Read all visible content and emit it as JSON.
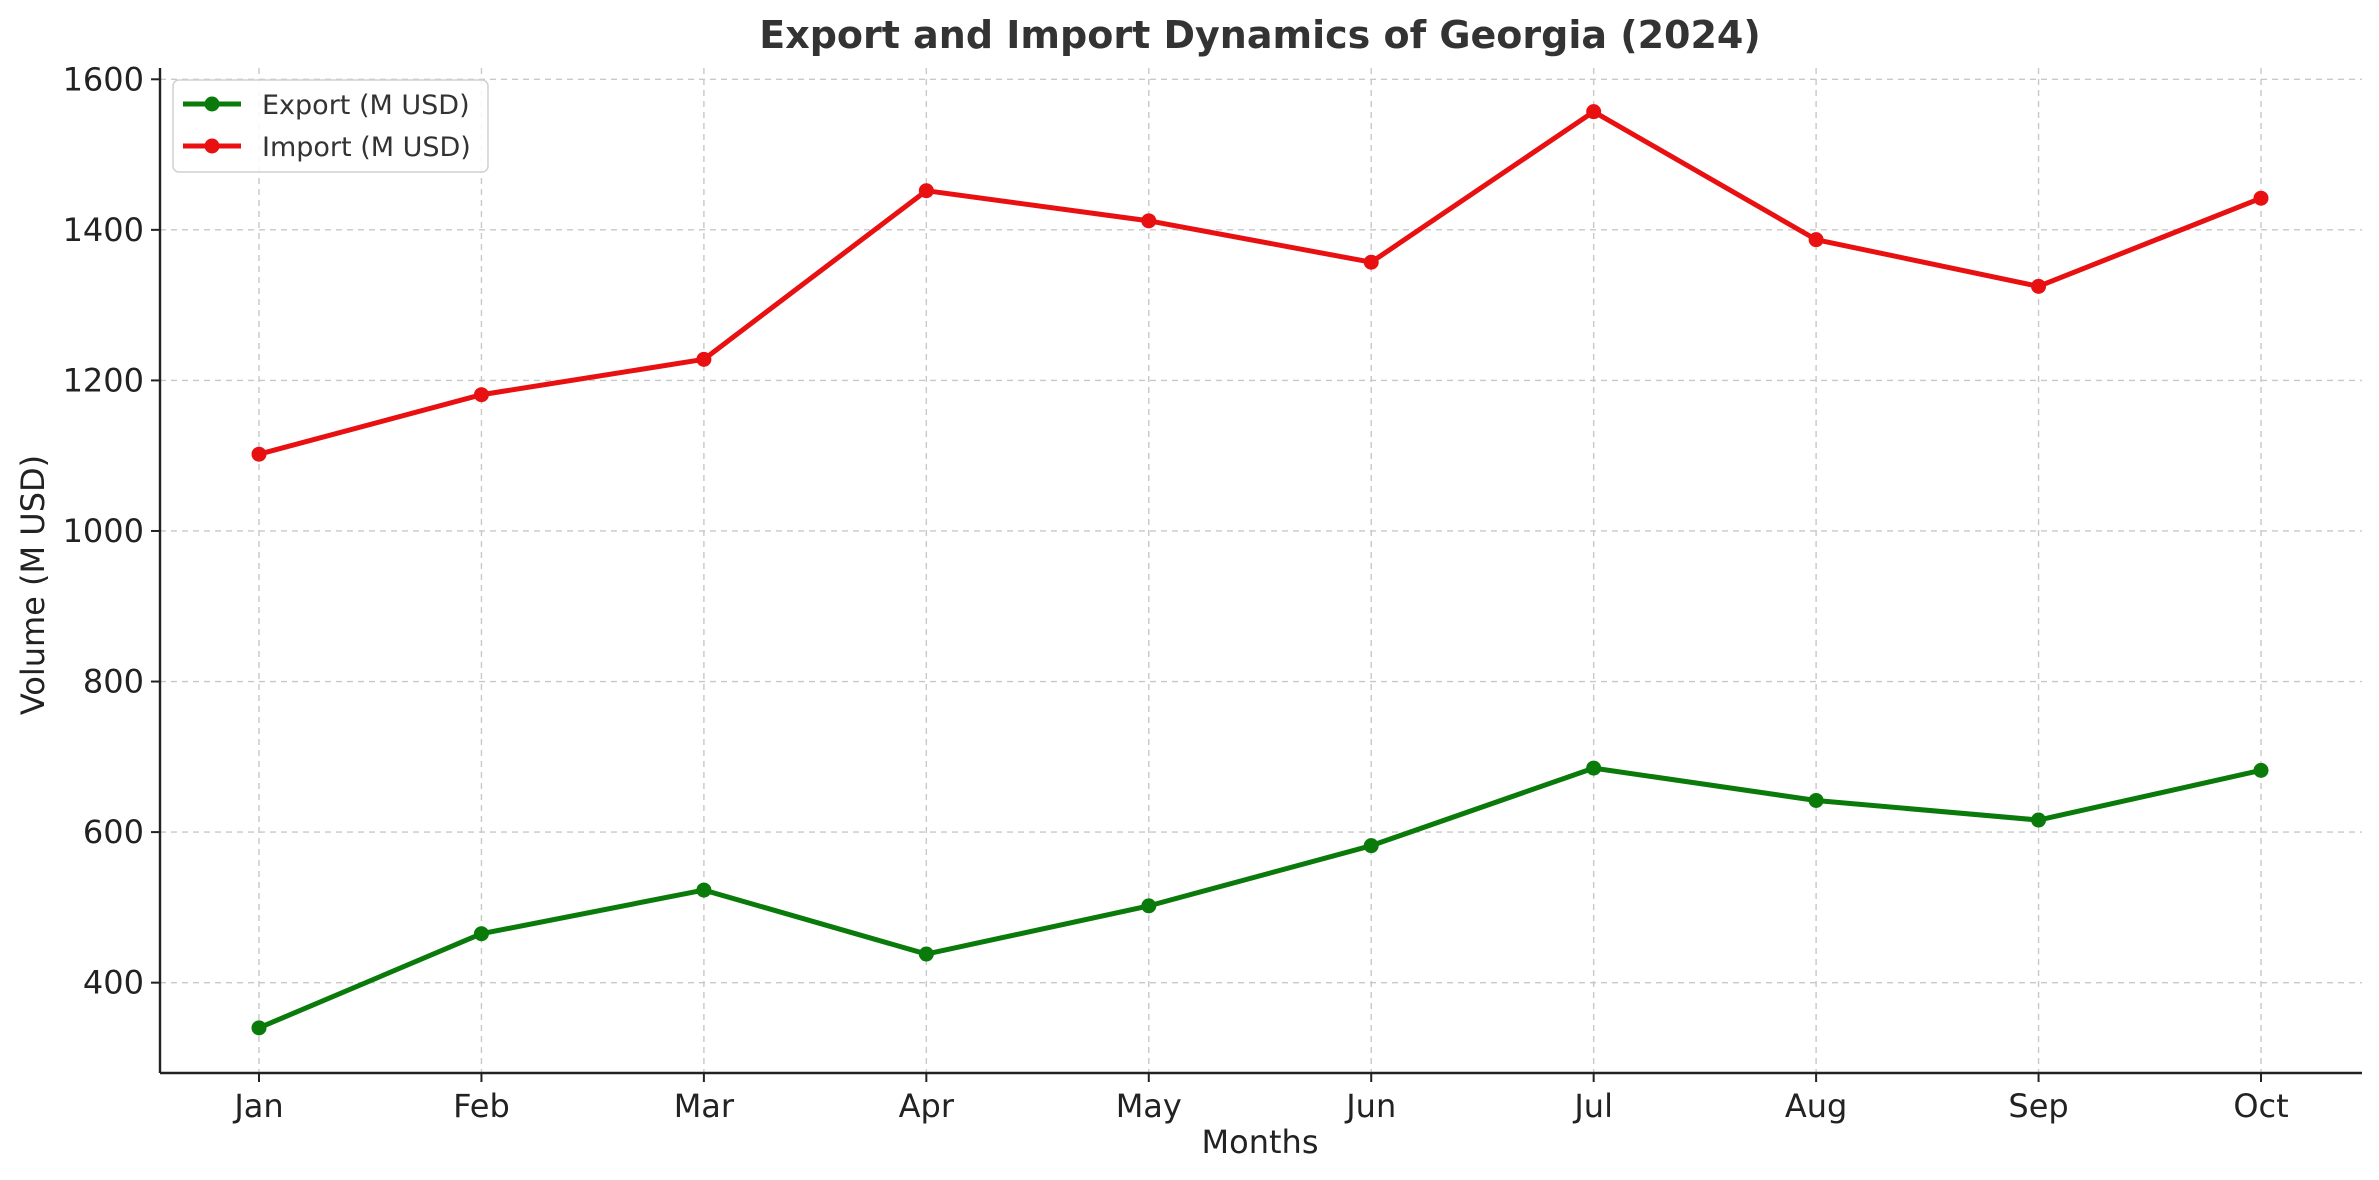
{
  "chart_data": {
    "type": "line",
    "title": "Export and Import Dynamics of Georgia (2024)",
    "xlabel": "Months",
    "ylabel": "Volume (M USD)",
    "categories": [
      "Jan",
      "Feb",
      "Mar",
      "Apr",
      "May",
      "Jun",
      "Jul",
      "Aug",
      "Sep",
      "Oct"
    ],
    "ylim": [
      280,
      1615
    ],
    "yticks": [
      400,
      600,
      800,
      1000,
      1200,
      1400,
      1600
    ],
    "grid": true,
    "legend_position": "top-left",
    "series": [
      {
        "name": "Export (M USD)",
        "color": "#0a7a0a",
        "marker": "circle",
        "values": [
          340,
          465,
          523,
          438,
          502,
          582,
          685,
          642,
          616,
          682
        ]
      },
      {
        "name": "Import (M USD)",
        "color": "#e81010",
        "marker": "circle",
        "values": [
          1102,
          1181,
          1228,
          1452,
          1412,
          1357,
          1557,
          1387,
          1325,
          1442
        ]
      }
    ]
  }
}
